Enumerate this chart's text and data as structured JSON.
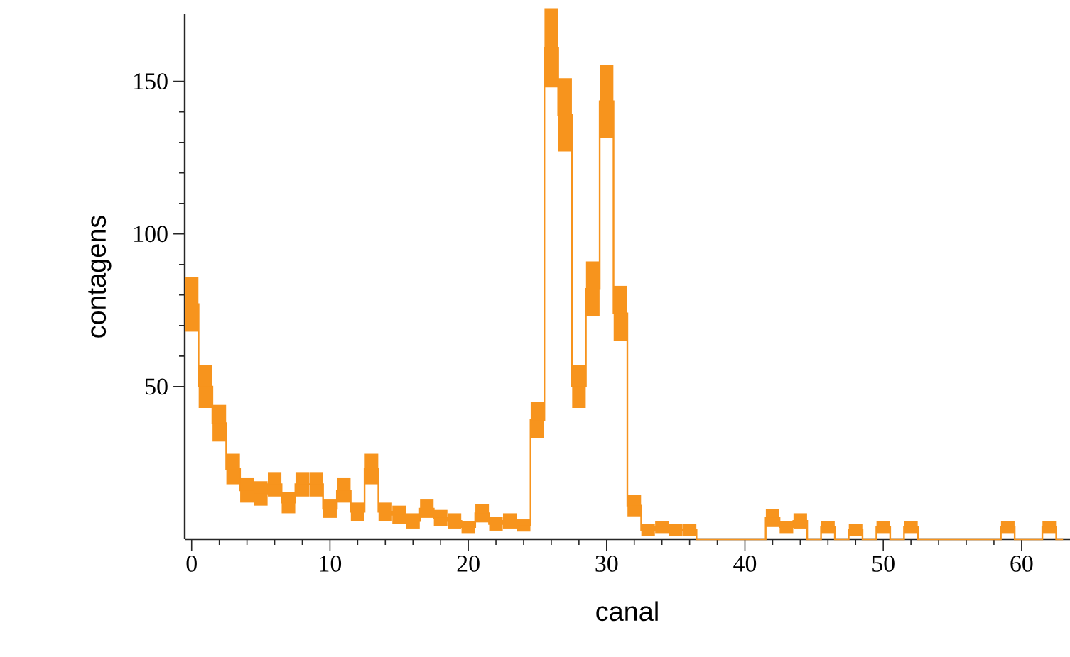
{
  "chart_data": {
    "type": "step",
    "xlabel": "canal",
    "ylabel": "contagens",
    "color": "#f7941d",
    "x": [
      0,
      1,
      2,
      3,
      4,
      5,
      6,
      7,
      8,
      9,
      10,
      11,
      12,
      13,
      14,
      15,
      16,
      17,
      18,
      19,
      20,
      21,
      22,
      23,
      24,
      25,
      26,
      27,
      28,
      29,
      30,
      31,
      32,
      33,
      34,
      35,
      36,
      37,
      38,
      39,
      40,
      41,
      42,
      43,
      44,
      45,
      46,
      47,
      48,
      49,
      50,
      51,
      52,
      53,
      54,
      55,
      56,
      57,
      58,
      59,
      60,
      61,
      62,
      63
    ],
    "values": [
      77,
      50,
      38,
      23,
      16,
      15,
      18,
      12,
      18,
      18,
      10,
      16,
      9,
      23,
      9,
      8,
      6,
      10,
      7,
      6,
      4,
      8.5,
      5,
      6,
      4.5,
      39,
      161,
      139,
      50,
      82,
      143.5,
      74,
      11,
      3,
      4,
      3,
      3,
      0,
      0,
      0,
      0,
      0,
      7,
      4,
      6,
      0,
      4,
      0,
      3,
      0,
      4,
      0,
      4,
      0,
      0,
      0,
      0,
      0,
      0,
      4,
      0,
      0,
      4,
      0
    ],
    "errors": [
      9,
      7,
      6,
      5,
      4,
      4,
      4,
      3.5,
      4,
      4,
      3,
      4,
      3,
      5,
      3,
      3,
      2.5,
      3,
      2.6,
      2.5,
      2,
      3,
      2.2,
      2.5,
      2,
      6,
      13,
      12,
      7,
      9,
      12,
      9,
      3.5,
      2,
      2,
      2,
      2,
      null,
      null,
      null,
      null,
      null,
      3,
      2,
      2.5,
      null,
      2,
      null,
      2,
      null,
      2,
      null,
      2,
      null,
      null,
      null,
      null,
      null,
      null,
      2,
      null,
      null,
      2,
      null
    ],
    "xlim": [
      -0.5,
      63.5
    ],
    "ylim": [
      0,
      172
    ],
    "xticks": [
      0,
      10,
      20,
      30,
      40,
      50,
      60
    ],
    "yticks": [
      50,
      100,
      150
    ]
  }
}
